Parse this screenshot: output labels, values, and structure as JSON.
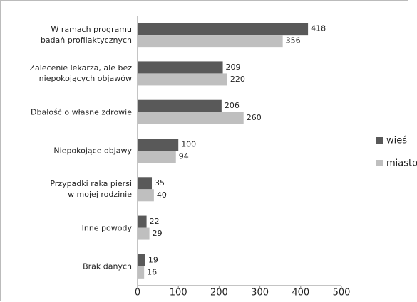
{
  "chart_data": {
    "type": "bar",
    "orientation": "horizontal",
    "categories": [
      "W ramach programu\nbadań profilaktycznych",
      "Zalecenie lekarza, ale bez\nniepokojących objawów",
      "Dbałość o własne zdrowie",
      "Niepokojące objawy",
      "Przypadki raka piersi\nw mojej rodzinie",
      "Inne powody",
      "Brak danych"
    ],
    "series": [
      {
        "name": "wieś",
        "color": "#595959",
        "values": [
          418,
          209,
          206,
          100,
          35,
          22,
          19
        ]
      },
      {
        "name": "miasto",
        "color": "#bfbfbf",
        "values": [
          356,
          220,
          260,
          94,
          40,
          29,
          16
        ]
      }
    ],
    "xlim": [
      0,
      500
    ],
    "xticks": [
      0,
      100,
      200,
      300,
      400,
      500
    ],
    "grid": false,
    "legend": "right"
  }
}
